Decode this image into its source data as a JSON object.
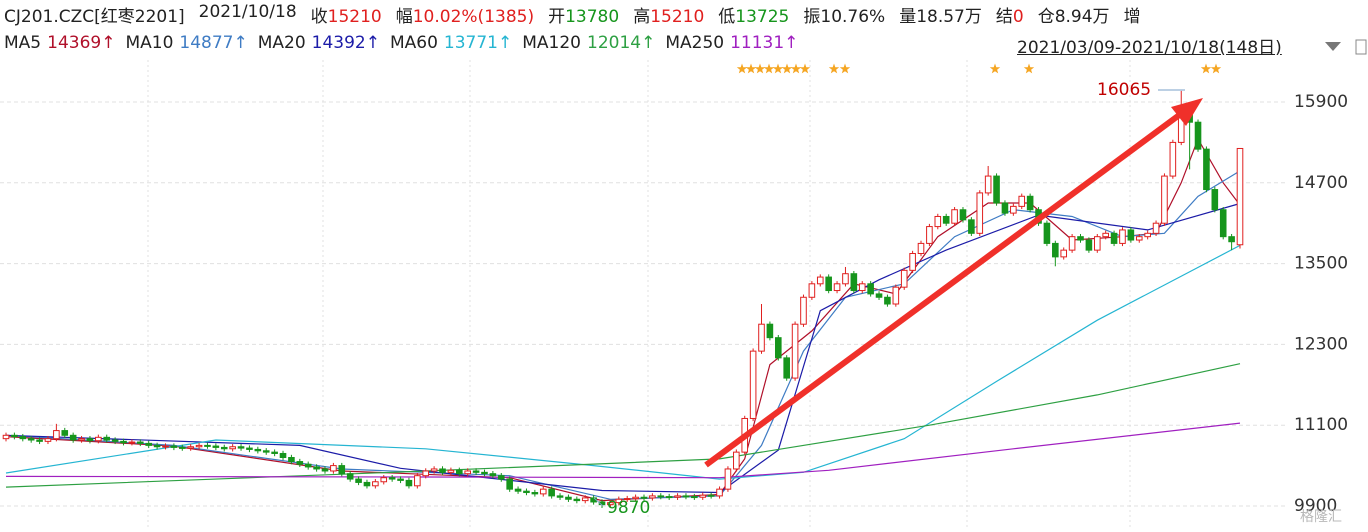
{
  "chart_data": {
    "type": "candlestick",
    "title": "CJ201.CZC[红枣2201]",
    "date": "2021/10/18",
    "quote": [
      {
        "label": "收",
        "value": "15210",
        "color": "#e0201f"
      },
      {
        "label": "幅",
        "value": "10.02%(1385)",
        "color": "#e0201f"
      },
      {
        "label": "开",
        "value": "13780",
        "color": "#16951c"
      },
      {
        "label": "高",
        "value": "15210",
        "color": "#e0201f"
      },
      {
        "label": "低",
        "value": "13725",
        "color": "#16951c"
      },
      {
        "label": "振",
        "value": "10.76%",
        "color": "#222222"
      },
      {
        "label": "量",
        "value": "18.57万",
        "color": "#222222"
      },
      {
        "label": "结",
        "value": "0",
        "color": "#e0201f"
      },
      {
        "label": "仓",
        "value": "8.94万",
        "color": "#222222"
      },
      {
        "label": "增"
      }
    ],
    "range": "2021/03/09-2021/10/18(148日)",
    "watermark": "格隆汇",
    "up_color": "#e0201f",
    "down_color": "#16951c",
    "grid": true,
    "ylim": [
      9588,
      16524
    ],
    "yticks": [
      15900,
      14700,
      13500,
      12300,
      11100,
      9900
    ],
    "annotations": [
      {
        "text": "16065",
        "color": "#c00000"
      },
      {
        "text": "9870",
        "color": "#16951c"
      }
    ],
    "open": [
      10900,
      10950,
      10930,
      10900,
      10880,
      10860,
      10900,
      11020,
      10950,
      10880,
      10900,
      10870,
      10920,
      10880,
      10860,
      10840,
      10850,
      10830,
      10800,
      10780,
      10790,
      10770,
      10760,
      10780,
      10800,
      10790,
      10770,
      10750,
      10780,
      10760,
      10740,
      10720,
      10700,
      10680,
      10620,
      10560,
      10520,
      10480,
      10450,
      10420,
      10500,
      10380,
      10300,
      10250,
      10200,
      10260,
      10320,
      10300,
      10280,
      10200,
      10350,
      10420,
      10450,
      10400,
      10430,
      10380,
      10420,
      10400,
      10380,
      10350,
      10300,
      10150,
      10120,
      10100,
      10080,
      10150,
      10050,
      10030,
      10000,
      9980,
      10020,
      9960,
      9920,
      9950,
      10000,
      10010,
      10030,
      10020,
      10050,
      10040,
      10030,
      10050,
      10040,
      10030,
      10060,
      10050,
      10150,
      10450,
      10700,
      11200,
      12200,
      12600,
      12400,
      12100,
      11800,
      12600,
      13000,
      13200,
      13300,
      13100,
      13200,
      13350,
      13100,
      13200,
      13050,
      13000,
      12900,
      13150,
      13400,
      13650,
      13800,
      14050,
      14200,
      14100,
      14300,
      14150,
      13950,
      14550,
      14800,
      14400,
      14250,
      14350,
      14500,
      14300,
      14100,
      13800,
      13600,
      13700,
      13900,
      13850,
      13700,
      13900,
      13950,
      13800,
      14000,
      13850,
      13900,
      13950,
      14100,
      14800,
      15300,
      15800,
      15600,
      15200,
      14600,
      14300,
      13900,
      13780
    ],
    "high": [
      10990,
      10990,
      10970,
      10940,
      10920,
      10940,
      11120,
      11060,
      10990,
      10940,
      10940,
      10960,
      10960,
      10920,
      10900,
      10890,
      10890,
      10870,
      10840,
      10830,
      10830,
      10810,
      10820,
      10840,
      10840,
      10830,
      10810,
      10820,
      10820,
      10800,
      10780,
      10760,
      10740,
      10720,
      10660,
      10600,
      10560,
      10520,
      10490,
      10540,
      10540,
      10420,
      10340,
      10290,
      10300,
      10360,
      10360,
      10340,
      10320,
      10390,
      10460,
      10490,
      10490,
      10470,
      10470,
      10460,
      10460,
      10440,
      10420,
      10390,
      10340,
      10190,
      10160,
      10140,
      10190,
      10190,
      10090,
      10070,
      10040,
      10060,
      10060,
      10000,
      9990,
      10040,
      10050,
      10070,
      10070,
      10090,
      10090,
      10080,
      10090,
      10090,
      10080,
      10100,
      10100,
      10190,
      10490,
      10740,
      11240,
      12240,
      12900,
      12640,
      12440,
      12140,
      12640,
      13040,
      13240,
      13340,
      13340,
      13240,
      13450,
      13390,
      13240,
      13240,
      13090,
      13040,
      13190,
      13440,
      13690,
      13840,
      14090,
      14240,
      14240,
      14340,
      14340,
      14190,
      14590,
      14950,
      14840,
      14440,
      14390,
      14540,
      14540,
      14340,
      14140,
      13840,
      13740,
      13940,
      13940,
      13890,
      13940,
      13990,
      13990,
      14040,
      14040,
      13940,
      13990,
      14140,
      14840,
      15340,
      16065,
      15840,
      15640,
      15240,
      14640,
      14340,
      13940,
      15210
    ],
    "low": [
      10860,
      10890,
      10860,
      10840,
      10820,
      10820,
      10860,
      10910,
      10840,
      10840,
      10830,
      10830,
      10840,
      10820,
      10800,
      10800,
      10790,
      10760,
      10740,
      10740,
      10730,
      10720,
      10720,
      10740,
      10750,
      10730,
      10710,
      10710,
      10720,
      10700,
      10680,
      10660,
      10640,
      10580,
      10520,
      10480,
      10440,
      10410,
      10380,
      10380,
      10340,
      10260,
      10210,
      10160,
      10160,
      10220,
      10260,
      10240,
      10160,
      10160,
      10310,
      10380,
      10360,
      10360,
      10340,
      10340,
      10360,
      10340,
      10310,
      10260,
      10110,
      10080,
      10060,
      10040,
      10040,
      10010,
      9990,
      9960,
      9940,
      9940,
      9920,
      9870,
      9880,
      9910,
      9960,
      9970,
      9980,
      9980,
      10000,
      9990,
      9990,
      10000,
      9990,
      9990,
      10010,
      10010,
      10110,
      10410,
      10660,
      11160,
      12160,
      12360,
      12060,
      11760,
      11760,
      12560,
      12960,
      13160,
      13060,
      13060,
      13160,
      13060,
      13060,
      13010,
      12960,
      12860,
      12860,
      13110,
      13360,
      13610,
      13760,
      14010,
      14060,
      14060,
      14110,
      13910,
      13910,
      14510,
      14360,
      14210,
      14210,
      14310,
      14260,
      14060,
      13760,
      13460,
      13560,
      13660,
      13810,
      13660,
      13660,
      13860,
      13760,
      13760,
      13810,
      13810,
      13860,
      13910,
      14060,
      14760,
      15260,
      14900,
      15160,
      14560,
      14260,
      13860,
      13700,
      13725
    ],
    "close": [
      10950,
      10930,
      10900,
      10880,
      10860,
      10900,
      11020,
      10950,
      10880,
      10900,
      10870,
      10920,
      10880,
      10860,
      10840,
      10850,
      10830,
      10800,
      10780,
      10790,
      10770,
      10760,
      10780,
      10800,
      10790,
      10770,
      10750,
      10780,
      10760,
      10740,
      10720,
      10700,
      10680,
      10620,
      10560,
      10520,
      10480,
      10450,
      10420,
      10500,
      10380,
      10300,
      10250,
      10200,
      10260,
      10320,
      10300,
      10280,
      10200,
      10350,
      10420,
      10450,
      10400,
      10430,
      10380,
      10420,
      10400,
      10380,
      10350,
      10300,
      10150,
      10120,
      10100,
      10080,
      10150,
      10050,
      10030,
      10000,
      9980,
      10020,
      9960,
      9920,
      9950,
      10000,
      10010,
      10030,
      10020,
      10050,
      10040,
      10030,
      10050,
      10040,
      10030,
      10060,
      10050,
      10150,
      10450,
      10700,
      11200,
      12200,
      12600,
      12400,
      12100,
      11800,
      12600,
      13000,
      13200,
      13300,
      13100,
      13200,
      13350,
      13100,
      13200,
      13050,
      13000,
      12900,
      13150,
      13400,
      13650,
      13800,
      14050,
      14200,
      14100,
      14300,
      14150,
      13950,
      14550,
      14800,
      14400,
      14250,
      14350,
      14500,
      14300,
      14100,
      13800,
      13600,
      13700,
      13900,
      13850,
      13700,
      13900,
      13950,
      13800,
      14000,
      13850,
      13900,
      13950,
      14100,
      14800,
      15300,
      15800,
      15600,
      15200,
      14600,
      14300,
      13900,
      13825,
      15210
    ],
    "ma": [
      {
        "name": "MA5",
        "value": "14369↑",
        "color": "#b0102a",
        "x": [
          0,
          20,
          40,
          60,
          71,
          85,
          88,
          91,
          96,
          101,
          106,
          111,
          117,
          122,
          127,
          133,
          137,
          140,
          142,
          145,
          147
        ],
        "values": [
          10930,
          10790,
          10420,
          10320,
          9980,
          10070,
          10600,
          12000,
          12500,
          13200,
          13050,
          13900,
          14400,
          14400,
          13850,
          13900,
          13950,
          14700,
          15350,
          14700,
          14369
        ]
      },
      {
        "name": "MA10",
        "value": "14877↑",
        "color": "#3f7cc4",
        "x": [
          0,
          20,
          40,
          60,
          72,
          85,
          90,
          95,
          100,
          107,
          113,
          120,
          127,
          133,
          138,
          142,
          147
        ],
        "values": [
          10950,
          10800,
          10450,
          10350,
          10000,
          10050,
          10800,
          12200,
          13000,
          13200,
          13900,
          14300,
          14200,
          13900,
          13950,
          14500,
          14877
        ]
      },
      {
        "name": "MA20",
        "value": "14392↑",
        "color": "#1c1ca8",
        "x": [
          0,
          35,
          47,
          71,
          85,
          92,
          97,
          104,
          112,
          123,
          136,
          147
        ],
        "values": [
          10950,
          10800,
          10460,
          10130,
          10100,
          10730,
          12800,
          13260,
          13700,
          14220,
          14000,
          14392
        ]
      },
      {
        "name": "MA60",
        "value": "13771↑",
        "color": "#25b5d2",
        "x": [
          0,
          25,
          50,
          70,
          85,
          95,
          107,
          118,
          130,
          147
        ],
        "values": [
          10390,
          10880,
          10750,
          10500,
          10300,
          10400,
          10900,
          11750,
          12660,
          13771
        ]
      },
      {
        "name": "MA120",
        "value": "12014↑",
        "color": "#2ea043",
        "x": [
          0,
          50,
          85,
          110,
          130,
          147
        ],
        "values": [
          10180,
          10420,
          10600,
          11100,
          11550,
          12014
        ]
      },
      {
        "name": "MA250",
        "value": "11131↑",
        "color": "#a020c0",
        "x": [
          0,
          50,
          85,
          98,
          120,
          147
        ],
        "values": [
          10340,
          10330,
          10320,
          10430,
          10750,
          11131
        ]
      }
    ]
  }
}
